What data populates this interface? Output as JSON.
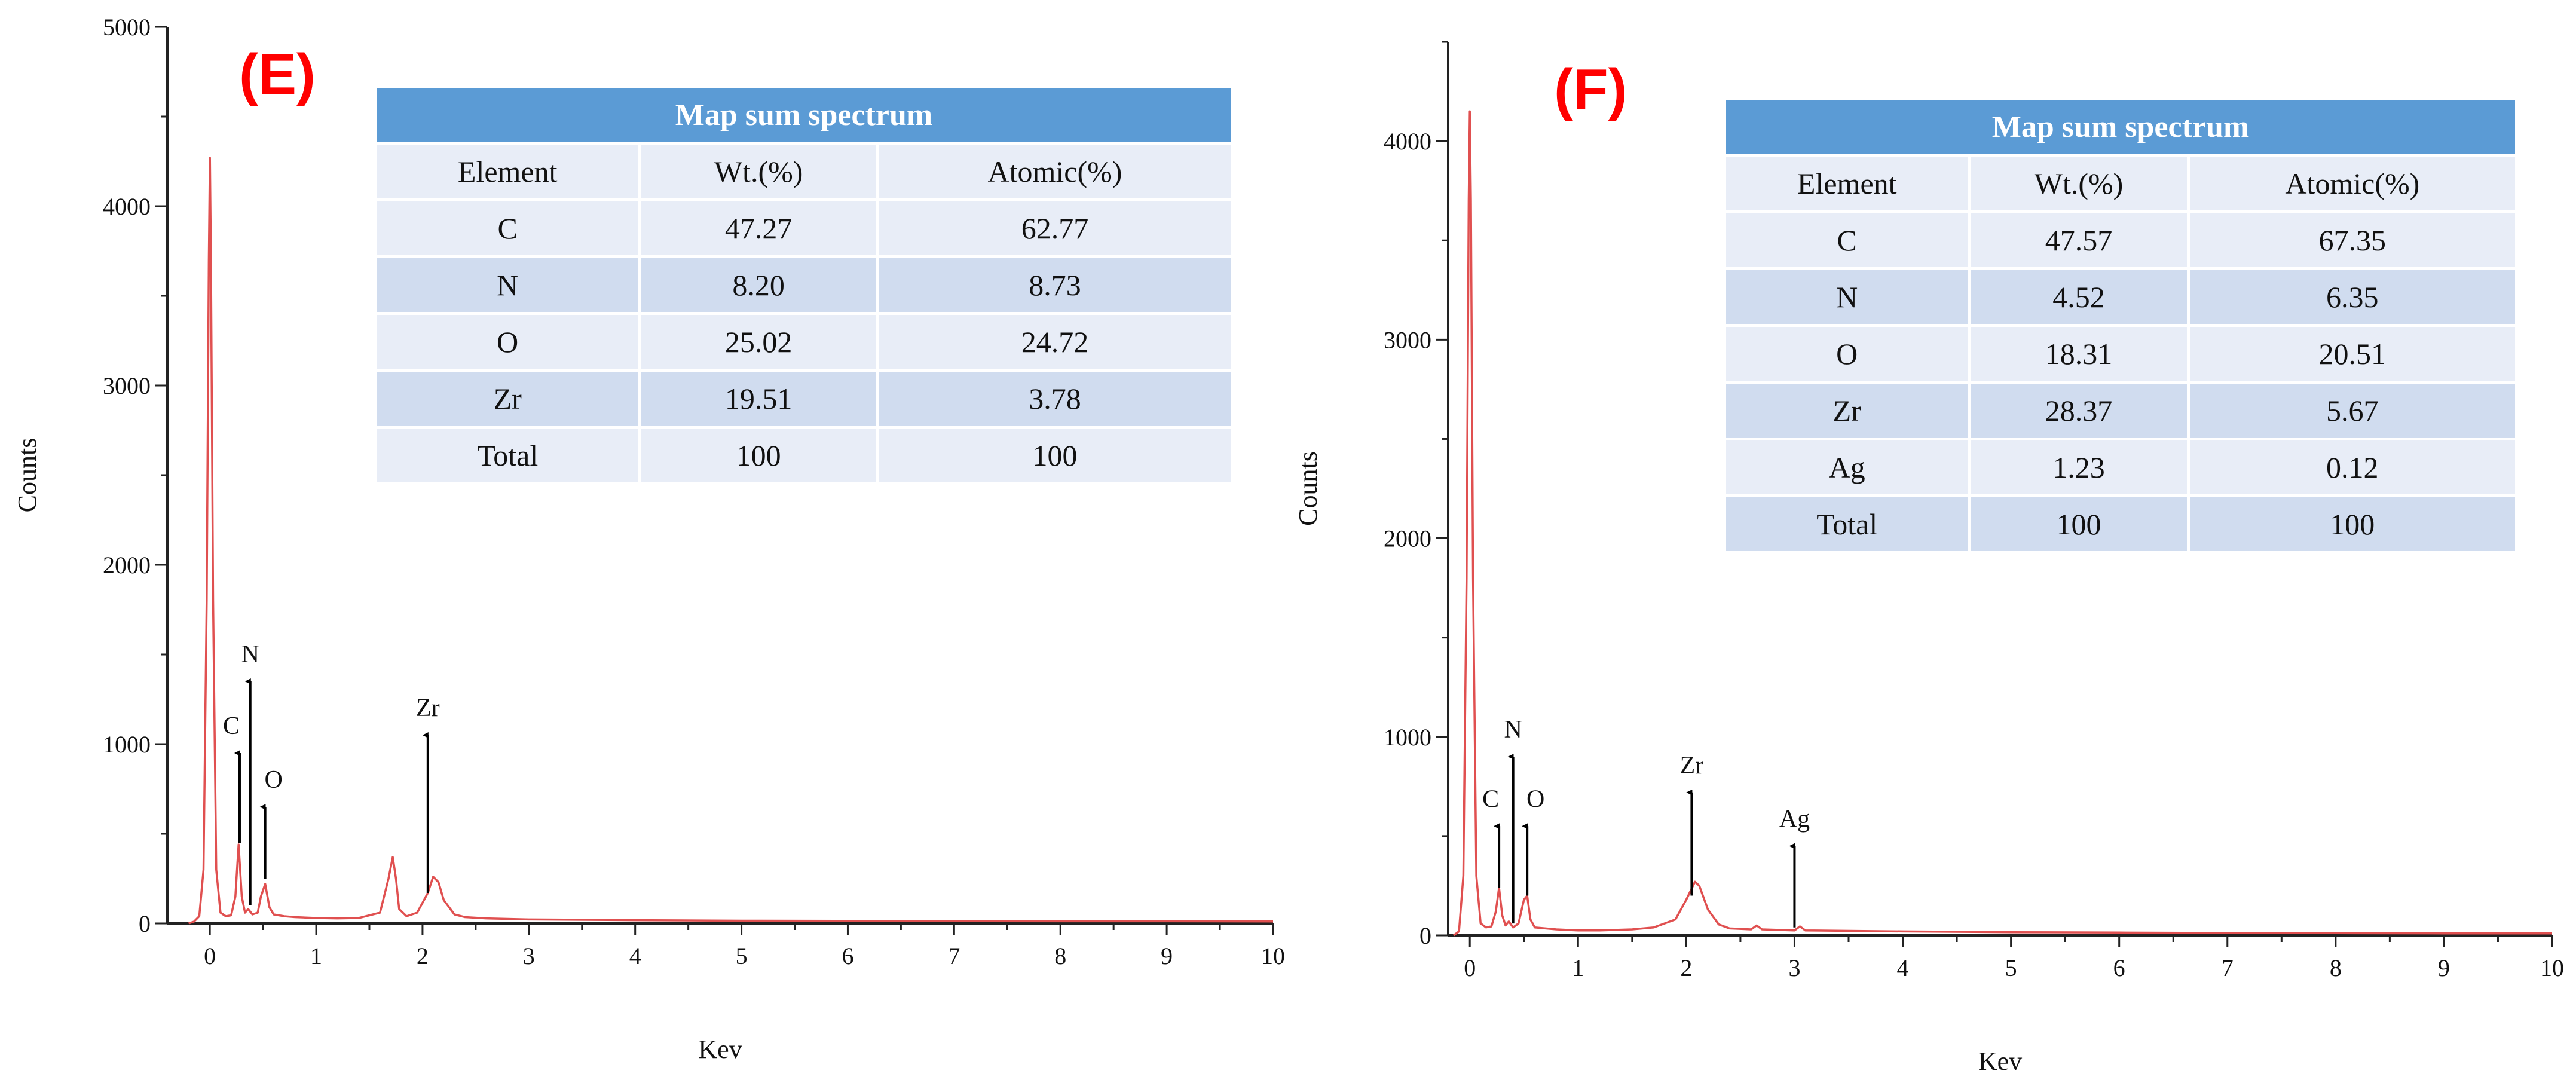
{
  "chart_data": [
    {
      "type": "line",
      "panel_label": "(E)",
      "xlabel": "Kev",
      "ylabel": "Counts",
      "xlim": [
        -0.4,
        10
      ],
      "ylim": [
        0,
        5000
      ],
      "xticks": [
        0,
        1,
        2,
        3,
        4,
        5,
        6,
        7,
        8,
        9,
        10
      ],
      "yticks": [
        0,
        1000,
        2000,
        3000,
        4000,
        5000
      ],
      "series": [
        {
          "name": "spectrum",
          "color": "#e05050",
          "x": [
            -0.2,
            -0.15,
            -0.1,
            -0.06,
            -0.03,
            -0.01,
            0.0,
            0.01,
            0.03,
            0.06,
            0.1,
            0.15,
            0.2,
            0.24,
            0.27,
            0.3,
            0.33,
            0.36,
            0.4,
            0.45,
            0.48,
            0.52,
            0.56,
            0.6,
            0.7,
            0.8,
            1.0,
            1.2,
            1.4,
            1.6,
            1.68,
            1.72,
            1.75,
            1.78,
            1.85,
            1.95,
            2.05,
            2.1,
            2.15,
            2.2,
            2.3,
            2.4,
            2.6,
            3.0,
            4.0,
            5.0,
            6.0,
            7.0,
            8.0,
            9.0,
            10.0
          ],
          "y": [
            0,
            10,
            40,
            300,
            1800,
            3700,
            4270,
            3700,
            1800,
            300,
            60,
            40,
            45,
            150,
            440,
            150,
            60,
            80,
            50,
            60,
            150,
            220,
            90,
            50,
            40,
            35,
            30,
            28,
            30,
            60,
            250,
            370,
            250,
            80,
            40,
            60,
            170,
            260,
            230,
            130,
            50,
            35,
            28,
            22,
            18,
            15,
            14,
            13,
            12,
            12,
            11
          ]
        }
      ],
      "annotations": [
        {
          "label": "C",
          "x": 0.28,
          "y_base": 450,
          "y_tip": 950
        },
        {
          "label": "N",
          "x": 0.38,
          "y_base": 100,
          "y_tip": 1350
        },
        {
          "label": "O",
          "x": 0.52,
          "y_base": 250,
          "y_tip": 650
        },
        {
          "label": "Zr",
          "x": 2.05,
          "y_base": 170,
          "y_tip": 1050
        }
      ],
      "table": {
        "title": "Map sum spectrum",
        "headers": [
          "Element",
          "Wt.(%)",
          "Atomic(%)"
        ],
        "rows": [
          [
            "C",
            "47.27",
            "62.77"
          ],
          [
            "N",
            "8.20",
            "8.73"
          ],
          [
            "O",
            "25.02",
            "24.72"
          ],
          [
            "Zr",
            "19.51",
            "3.78"
          ],
          [
            "Total",
            "100",
            "100"
          ]
        ]
      }
    },
    {
      "type": "line",
      "panel_label": "(F)",
      "xlabel": "Kev",
      "ylabel": "Counts",
      "xlim": [
        -0.2,
        10
      ],
      "ylim": [
        0,
        4500
      ],
      "xticks": [
        0,
        1,
        2,
        3,
        4,
        5,
        6,
        7,
        8,
        9,
        10
      ],
      "yticks": [
        0,
        1000,
        2000,
        3000,
        4000
      ],
      "series": [
        {
          "name": "spectrum",
          "color": "#e05050",
          "x": [
            -0.15,
            -0.1,
            -0.06,
            -0.03,
            -0.01,
            0.0,
            0.01,
            0.03,
            0.06,
            0.1,
            0.15,
            0.2,
            0.24,
            0.27,
            0.3,
            0.33,
            0.36,
            0.4,
            0.45,
            0.5,
            0.53,
            0.56,
            0.6,
            0.7,
            0.8,
            1.0,
            1.2,
            1.5,
            1.7,
            1.9,
            2.0,
            2.08,
            2.12,
            2.2,
            2.3,
            2.4,
            2.6,
            2.65,
            2.7,
            3.0,
            3.05,
            3.1,
            4.0,
            5.0,
            6.0,
            7.0,
            8.0,
            9.0,
            10.0
          ],
          "y": [
            0,
            20,
            300,
            1800,
            3700,
            4150,
            3700,
            1800,
            300,
            60,
            40,
            45,
            120,
            240,
            100,
            50,
            70,
            40,
            60,
            180,
            200,
            80,
            40,
            35,
            30,
            25,
            25,
            30,
            40,
            80,
            180,
            270,
            250,
            130,
            55,
            35,
            30,
            50,
            30,
            25,
            45,
            25,
            20,
            16,
            14,
            12,
            11,
            10,
            10
          ]
        }
      ],
      "annotations": [
        {
          "label": "C",
          "x": 0.27,
          "y_base": 240,
          "y_tip": 550
        },
        {
          "label": "N",
          "x": 0.4,
          "y_base": 60,
          "y_tip": 900
        },
        {
          "label": "O",
          "x": 0.53,
          "y_base": 200,
          "y_tip": 550
        },
        {
          "label": "Zr",
          "x": 2.05,
          "y_base": 200,
          "y_tip": 720
        },
        {
          "label": "Ag",
          "x": 3.0,
          "y_base": 40,
          "y_tip": 450
        }
      ],
      "table": {
        "title": "Map sum spectrum",
        "headers": [
          "Element",
          "Wt.(%)",
          "Atomic(%)"
        ],
        "rows": [
          [
            "C",
            "47.57",
            "67.35"
          ],
          [
            "N",
            "4.52",
            "6.35"
          ],
          [
            "O",
            "18.31",
            "20.51"
          ],
          [
            "Zr",
            "28.37",
            "5.67"
          ],
          [
            "Ag",
            "1.23",
            "0.12"
          ],
          [
            "Total",
            "100",
            "100"
          ]
        ]
      }
    }
  ]
}
